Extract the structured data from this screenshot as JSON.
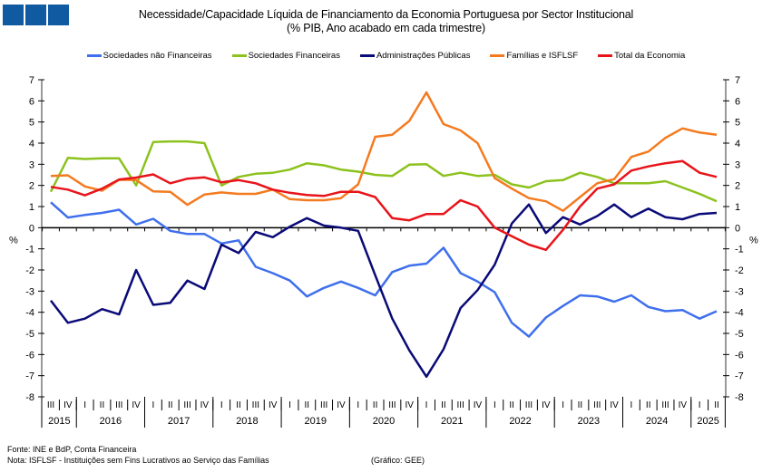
{
  "chart_data": {
    "type": "line",
    "title": "Necessidade/Capacidade  Líquida de Financiamento  da Economia Portuguesa por Sector Institucional",
    "subtitle": "(% PIB, Ano acabado em cada trimestre)",
    "xlabel": "",
    "ylabel": "%",
    "ylabel_right": "%",
    "ylim": [
      -8,
      7
    ],
    "yticks": [
      7,
      6,
      5,
      4,
      3,
      2,
      1,
      0,
      -1,
      -2,
      -3,
      -4,
      -5,
      -6,
      -7,
      -8
    ],
    "grid": false,
    "legend_position": "top",
    "x": [
      "2015 III",
      "2015 IV",
      "2016 I",
      "2016 II",
      "2016 III",
      "2016 IV",
      "2017 I",
      "2017 II",
      "2017 III",
      "2017 IV",
      "2018 I",
      "2018 II",
      "2018 III",
      "2018 IV",
      "2019 I",
      "2019 II",
      "2019 III",
      "2019 IV",
      "2020 I",
      "2020 II",
      "2020 III",
      "2020 IV",
      "2021 I",
      "2021 II",
      "2021 III",
      "2021 IV",
      "2022 I",
      "2022 II",
      "2022 III",
      "2022 IV",
      "2023 I",
      "2023 II",
      "2023 III",
      "2023 IV",
      "2024 I",
      "2024 II",
      "2024 III",
      "2024 IV",
      "2025 I",
      "2025 II"
    ],
    "quarter_labels": [
      "III",
      "IV",
      "I",
      "II",
      "III",
      "IV",
      "I",
      "II",
      "III",
      "IV",
      "I",
      "II",
      "III",
      "IV",
      "I",
      "II",
      "III",
      "IV",
      "I",
      "II",
      "III",
      "IV",
      "I",
      "II",
      "III",
      "IV",
      "I",
      "II",
      "III",
      "IV",
      "I",
      "II",
      "III",
      "IV",
      "I",
      "II",
      "III",
      "IV",
      "I",
      "II"
    ],
    "year_groups": [
      {
        "year": "2015",
        "count": 2
      },
      {
        "year": "2016",
        "count": 4
      },
      {
        "year": "2017",
        "count": 4
      },
      {
        "year": "2018",
        "count": 4
      },
      {
        "year": "2019",
        "count": 4
      },
      {
        "year": "2020",
        "count": 4
      },
      {
        "year": "2021",
        "count": 4
      },
      {
        "year": "2022",
        "count": 4
      },
      {
        "year": "2023",
        "count": 4
      },
      {
        "year": "2024",
        "count": 4
      },
      {
        "year": "2025",
        "count": 2
      }
    ],
    "series": [
      {
        "name": "Sociedades não Financeiras",
        "color": "#3f6fec",
        "values": [
          1.2,
          0.48,
          0.6,
          0.7,
          0.85,
          0.15,
          0.42,
          -0.15,
          -0.3,
          -0.3,
          -0.75,
          -0.6,
          -1.85,
          -2.15,
          -2.5,
          -3.25,
          -2.85,
          -2.55,
          -2.85,
          -3.2,
          -2.1,
          -1.8,
          -1.7,
          -0.95,
          -2.15,
          -2.55,
          -3.05,
          -4.5,
          -5.15,
          -4.25,
          -3.7,
          -3.2,
          -3.25,
          -3.5,
          -3.2,
          -3.75,
          -3.95,
          -3.9,
          -4.3,
          -3.95
        ]
      },
      {
        "name": "Sociedades Financeiras",
        "color": "#8cc21e",
        "values": [
          1.7,
          3.3,
          3.25,
          3.28,
          3.28,
          2.0,
          4.05,
          4.08,
          4.08,
          4.0,
          2.0,
          2.4,
          2.55,
          2.6,
          2.75,
          3.05,
          2.95,
          2.75,
          2.65,
          2.5,
          2.45,
          2.98,
          3.0,
          2.45,
          2.6,
          2.45,
          2.5,
          2.05,
          1.9,
          2.2,
          2.25,
          2.6,
          2.4,
          2.1,
          2.1,
          2.1,
          2.2,
          1.9,
          1.6,
          1.25
        ]
      },
      {
        "name": "Administrações Públicas",
        "color": "#0a0a78",
        "values": [
          -3.45,
          -4.5,
          -4.3,
          -3.85,
          -4.1,
          -2.0,
          -3.65,
          -3.55,
          -2.5,
          -2.9,
          -0.8,
          -1.2,
          -0.2,
          -0.45,
          0.05,
          0.45,
          0.1,
          0.0,
          -0.15,
          -2.25,
          -4.3,
          -5.8,
          -7.05,
          -5.75,
          -3.8,
          -2.95,
          -1.75,
          0.2,
          1.1,
          -0.25,
          0.5,
          0.15,
          0.55,
          1.1,
          0.5,
          0.9,
          0.5,
          0.4,
          0.65,
          0.7
        ]
      },
      {
        "name": "Famílias e ISFLSF",
        "color": "#f47a1f",
        "values": [
          2.45,
          2.48,
          1.95,
          1.75,
          2.27,
          2.25,
          1.72,
          1.7,
          1.08,
          1.57,
          1.67,
          1.6,
          1.6,
          1.8,
          1.35,
          1.3,
          1.3,
          1.4,
          2.05,
          4.3,
          4.4,
          5.05,
          6.4,
          4.9,
          4.6,
          4.0,
          2.35,
          1.85,
          1.4,
          1.25,
          0.8,
          1.45,
          2.1,
          2.3,
          3.35,
          3.6,
          4.25,
          4.7,
          4.5,
          4.4
        ]
      },
      {
        "name": "Total da Economia",
        "color": "#e8141b",
        "values": [
          1.93,
          1.8,
          1.53,
          1.85,
          2.28,
          2.37,
          2.52,
          2.1,
          2.32,
          2.38,
          2.15,
          2.25,
          2.1,
          1.8,
          1.65,
          1.55,
          1.5,
          1.7,
          1.7,
          1.45,
          0.45,
          0.35,
          0.65,
          0.65,
          1.3,
          1.0,
          0.0,
          -0.4,
          -0.8,
          -1.05,
          -0.1,
          1.0,
          1.85,
          2.05,
          2.7,
          2.9,
          3.05,
          3.15,
          2.6,
          2.4
        ]
      }
    ]
  },
  "header": {
    "title": "Necessidade/Capacidade  Líquida de Financiamento  da Economia Portuguesa por Sector Institucional",
    "subtitle": "(% PIB, Ano acabado em cada trimestre)"
  },
  "legend": [
    {
      "label": "Sociedades não Financeiras",
      "color": "#3f6fec"
    },
    {
      "label": "Sociedades Financeiras",
      "color": "#8cc21e"
    },
    {
      "label": "Administrações Públicas",
      "color": "#0a0a78"
    },
    {
      "label": "Famílias e ISFLSF",
      "color": "#f47a1f"
    },
    {
      "label": "Total da Economia",
      "color": "#e8141b"
    }
  ],
  "footer": {
    "source": "Fonte: INE e BdP, Conta Financeira",
    "note": "Nota: ISFLSF - Instituições sem Fins Lucrativos ao Serviço das Famílias",
    "credit": "(Gráfico: GEE)"
  },
  "logo": {
    "color": "#0f5aa0"
  }
}
